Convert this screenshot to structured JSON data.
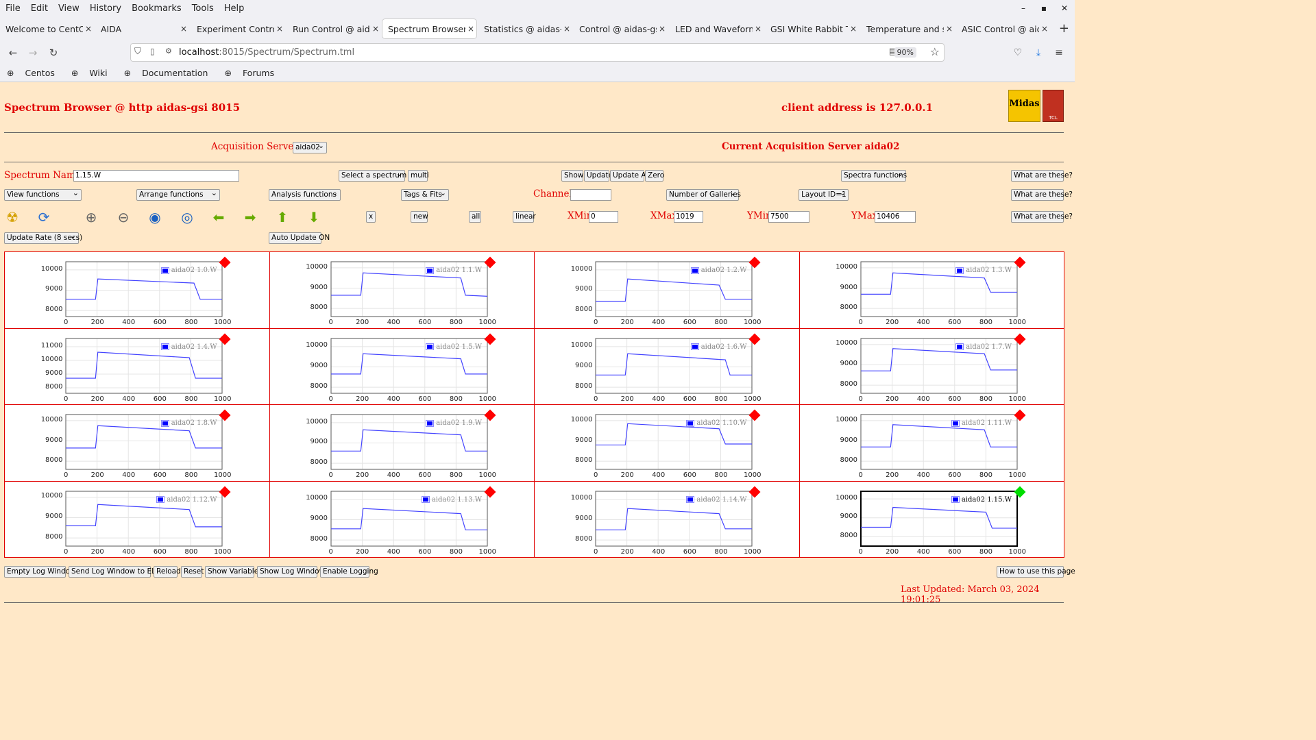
{
  "browser": {
    "menu": [
      "File",
      "Edit",
      "View",
      "History",
      "Bookmarks",
      "Tools",
      "Help"
    ],
    "tabs": [
      {
        "label": "Welcome to CentOS",
        "close": "×"
      },
      {
        "label": "AIDA",
        "close": "×"
      },
      {
        "label": "Experiment Control @",
        "close": "×"
      },
      {
        "label": "Run Control @ aidas",
        "close": "×"
      },
      {
        "label": "Spectrum Browser @",
        "close": "×"
      },
      {
        "label": "Statistics @ aidas-gsi",
        "close": "×"
      },
      {
        "label": "Control @ aidas-gsi",
        "close": "×"
      },
      {
        "label": "LED and Waveform c",
        "close": "×"
      },
      {
        "label": "GSI White Rabbit Tin",
        "close": "×"
      },
      {
        "label": "Temperature and sta",
        "close": "×"
      },
      {
        "label": "ASIC Control @ aida",
        "close": "×"
      }
    ],
    "active_tab": 4,
    "url_host": "localhost",
    "url_rest": ":8015/Spectrum/Spectrum.tml",
    "zoom": "90%",
    "bookmarks": [
      "Centos",
      "Wiki",
      "Documentation",
      "Forums"
    ]
  },
  "page": {
    "title": "Spectrum Browser @ http aidas-gsi 8015",
    "client": "client address is 127.0.0.1",
    "acq_label": "Acquisition Servers",
    "acq_value": "aida02",
    "current_server": "Current Acquisition Server aida02",
    "spectrum_name_label": "Spectrum Name:",
    "spectrum_name_value": "1.15.W",
    "select_spectrum": "Select a spectrum",
    "multi": "multi",
    "show": "Show",
    "update": "Update",
    "update_all": "Update All",
    "zero": "Zero",
    "spectra_functions": "Spectra functions",
    "what": "What are these?",
    "view_functions": "View functions",
    "arrange_functions": "Arrange functions",
    "analysis_functions": "Analysis functions",
    "tags_fits": "Tags & Fits",
    "channel_label": "Channel:",
    "channel_value": "",
    "galleries": "Number of Galleries",
    "layout": "Layout ID=1",
    "x_btn": "x",
    "new_btn": "new",
    "all_btn": "all",
    "linear_btn": "linear",
    "xmin_label": "XMin",
    "xmin": "0",
    "xmax_label": "XMax",
    "xmax": "1019",
    "ymin_label": "YMin",
    "ymin": "7500",
    "ymax_label": "YMax",
    "ymax": "10406",
    "update_rate": "Update Rate (8 secs)",
    "auto_update": "Auto Update ON",
    "footer_buttons": [
      "Empty Log Window",
      "Send Log Window to ELog",
      "Reload",
      "Reset",
      "Show Variables",
      "Show Log Window",
      "Enable Logging"
    ],
    "how_to": "How to use this page",
    "last_updated": "Last Updated: March 03, 2024 19:01:25"
  },
  "colors": {
    "accent": "#e00000",
    "bg": "#ffe8c8",
    "trace": "#4444ff",
    "selected_marker": "#00dd00",
    "marker": "#ff0000"
  },
  "chart_data": [
    {
      "type": "line",
      "legend": "aida02 1.0.W",
      "xlim": [
        0,
        1000
      ],
      "yticks": [
        8000,
        9000,
        10000
      ],
      "ylim": [
        7700,
        10400
      ],
      "x": [
        0,
        190,
        205,
        820,
        860,
        1000
      ],
      "y": [
        8550,
        8550,
        9550,
        9350,
        8550,
        8550
      ]
    },
    {
      "type": "line",
      "legend": "aida02 1.1.W",
      "xlim": [
        0,
        1000
      ],
      "yticks": [
        8000,
        9000,
        10000
      ],
      "ylim": [
        7600,
        10300
      ],
      "x": [
        0,
        190,
        205,
        830,
        860,
        1000
      ],
      "y": [
        8650,
        8650,
        9750,
        9500,
        8650,
        8600
      ]
    },
    {
      "type": "line",
      "legend": "aida02 1.2.W",
      "xlim": [
        0,
        1000
      ],
      "yticks": [
        8000,
        9000,
        10000
      ],
      "ylim": [
        7700,
        10400
      ],
      "x": [
        0,
        190,
        205,
        790,
        830,
        1000
      ],
      "y": [
        8450,
        8450,
        9550,
        9250,
        8550,
        8550
      ]
    },
    {
      "type": "line",
      "legend": "aida02 1.3.W",
      "xlim": [
        0,
        1000
      ],
      "yticks": [
        8000,
        9000,
        10000
      ],
      "ylim": [
        7600,
        10300
      ],
      "x": [
        0,
        190,
        205,
        790,
        830,
        1000
      ],
      "y": [
        8700,
        8700,
        9750,
        9500,
        8800,
        8800
      ]
    },
    {
      "type": "line",
      "legend": "aida02 1.4.W",
      "xlim": [
        0,
        1000
      ],
      "yticks": [
        8000,
        9000,
        10000,
        11000
      ],
      "ylim": [
        7600,
        11600
      ],
      "x": [
        0,
        190,
        205,
        790,
        830,
        1000
      ],
      "y": [
        8700,
        8700,
        10600,
        10200,
        8700,
        8700
      ]
    },
    {
      "type": "line",
      "legend": "aida02 1.5.W",
      "xlim": [
        0,
        1000
      ],
      "yticks": [
        8000,
        9000,
        10000
      ],
      "ylim": [
        7700,
        10400
      ],
      "x": [
        0,
        190,
        205,
        830,
        860,
        1000
      ],
      "y": [
        8650,
        8650,
        9650,
        9400,
        8650,
        8650
      ]
    },
    {
      "type": "line",
      "legend": "aida02 1.6.W",
      "xlim": [
        0,
        1000
      ],
      "yticks": [
        8000,
        9000,
        10000
      ],
      "ylim": [
        7700,
        10400
      ],
      "x": [
        0,
        190,
        205,
        830,
        860,
        1000
      ],
      "y": [
        8600,
        8600,
        9650,
        9350,
        8600,
        8600
      ]
    },
    {
      "type": "line",
      "legend": "aida02 1.7.W",
      "xlim": [
        0,
        1000
      ],
      "yticks": [
        8000,
        9000,
        10000
      ],
      "ylim": [
        7600,
        10300
      ],
      "x": [
        0,
        190,
        205,
        790,
        830,
        1000
      ],
      "y": [
        8700,
        8700,
        9800,
        9550,
        8750,
        8750
      ]
    },
    {
      "type": "line",
      "legend": "aida02 1.8.W",
      "xlim": [
        0,
        1000
      ],
      "yticks": [
        8000,
        9000,
        10000
      ],
      "ylim": [
        7600,
        10300
      ],
      "x": [
        0,
        190,
        205,
        790,
        830,
        1000
      ],
      "y": [
        8650,
        8650,
        9750,
        9500,
        8650,
        8650
      ]
    },
    {
      "type": "line",
      "legend": "aida02 1.9.W",
      "xlim": [
        0,
        1000
      ],
      "yticks": [
        8000,
        9000,
        10000
      ],
      "ylim": [
        7700,
        10400
      ],
      "x": [
        0,
        190,
        205,
        830,
        860,
        1000
      ],
      "y": [
        8600,
        8600,
        9650,
        9400,
        8600,
        8600
      ]
    },
    {
      "type": "line",
      "legend": "aida02 1.10.W",
      "xlim": [
        0,
        1000
      ],
      "yticks": [
        8000,
        9000,
        10000
      ],
      "ylim": [
        7600,
        10300
      ],
      "x": [
        0,
        190,
        205,
        790,
        830,
        1000
      ],
      "y": [
        8800,
        8800,
        9850,
        9600,
        8850,
        8850
      ]
    },
    {
      "type": "line",
      "legend": "aida02 1.11.W",
      "xlim": [
        0,
        1000
      ],
      "yticks": [
        8000,
        9000,
        10000
      ],
      "ylim": [
        7600,
        10300
      ],
      "x": [
        0,
        190,
        205,
        790,
        830,
        1000
      ],
      "y": [
        8700,
        8700,
        9800,
        9550,
        8700,
        8700
      ]
    },
    {
      "type": "line",
      "legend": "aida02 1.12.W",
      "xlim": [
        0,
        1000
      ],
      "yticks": [
        8000,
        9000,
        10000
      ],
      "ylim": [
        7600,
        10300
      ],
      "x": [
        0,
        190,
        205,
        790,
        830,
        1000
      ],
      "y": [
        8600,
        8600,
        9650,
        9400,
        8550,
        8550
      ]
    },
    {
      "type": "line",
      "legend": "aida02 1.13.W",
      "xlim": [
        0,
        1000
      ],
      "yticks": [
        8000,
        9000,
        10000
      ],
      "ylim": [
        7700,
        10400
      ],
      "x": [
        0,
        190,
        205,
        830,
        860,
        1000
      ],
      "y": [
        8550,
        8550,
        9550,
        9300,
        8500,
        8500
      ]
    },
    {
      "type": "line",
      "legend": "aida02 1.14.W",
      "xlim": [
        0,
        1000
      ],
      "yticks": [
        8000,
        9000,
        10000
      ],
      "ylim": [
        7700,
        10400
      ],
      "x": [
        0,
        190,
        205,
        790,
        830,
        1000
      ],
      "y": [
        8500,
        8500,
        9550,
        9300,
        8550,
        8550
      ]
    },
    {
      "type": "line",
      "legend": "aida02 1.15.W",
      "xlim": [
        0,
        1000
      ],
      "yticks": [
        8000,
        9000,
        10000
      ],
      "ylim": [
        7500,
        10406
      ],
      "x": [
        0,
        190,
        205,
        800,
        840,
        1000
      ],
      "y": [
        8500,
        8500,
        9550,
        9300,
        8450,
        8450
      ],
      "selected": true
    }
  ]
}
